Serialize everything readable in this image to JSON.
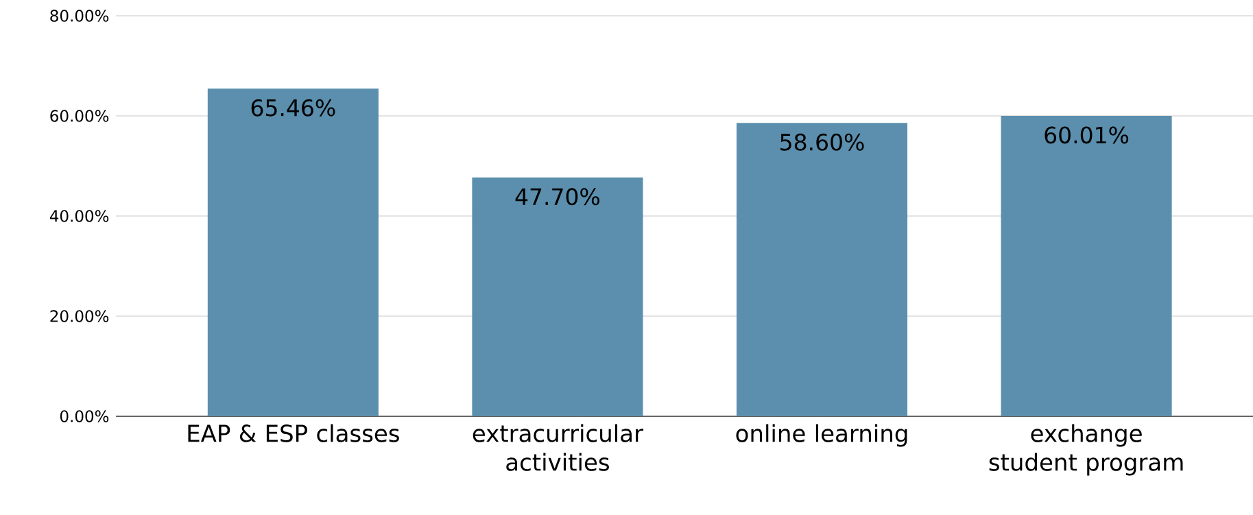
{
  "chart_data": {
    "type": "bar",
    "categories": [
      "EAP & ESP classes",
      "extracurricular activities",
      "online learning",
      "exchange student program"
    ],
    "values": [
      65.46,
      47.7,
      58.6,
      60.01
    ],
    "value_labels": [
      "65.46%",
      "47.70%",
      "58.60%",
      "60.01%"
    ],
    "color": "#5b8fad",
    "ylim": [
      0,
      80
    ],
    "yticks": [
      {
        "value": 0,
        "label": "0.00%"
      },
      {
        "value": 20,
        "label": "20.00%"
      },
      {
        "value": 40,
        "label": "40.00%"
      },
      {
        "value": 60,
        "label": "60.00%"
      },
      {
        "value": 80,
        "label": "80.00%"
      }
    ],
    "grid": "y"
  }
}
